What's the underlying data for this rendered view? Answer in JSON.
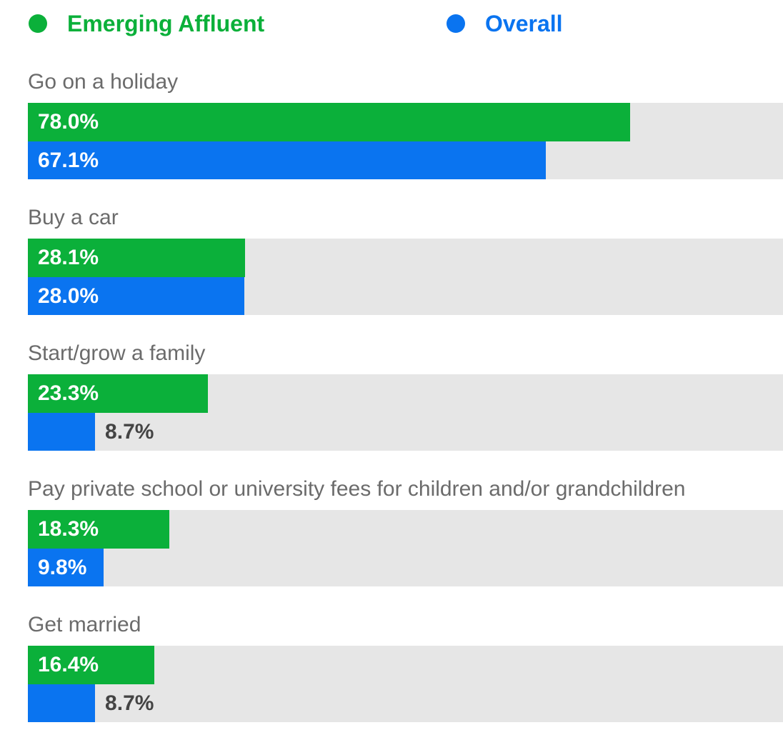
{
  "chart_data": {
    "type": "bar",
    "orientation": "horizontal",
    "categories": [
      "Go on a holiday",
      "Buy a car",
      "Start/grow a family",
      "Pay private school or university fees for children and/or grandchildren",
      "Get married"
    ],
    "xlim": [
      0,
      100
    ],
    "series": [
      {
        "name": "Emerging Affluent",
        "color": "#0bb03a",
        "values": [
          78.0,
          28.1,
          23.3,
          18.3,
          16.4
        ],
        "value_labels": [
          "78.0%",
          "28.1%",
          "23.3%",
          "18.3%",
          "16.4%"
        ]
      },
      {
        "name": "Overall",
        "color": "#0a74f0",
        "values": [
          67.1,
          28.0,
          8.7,
          9.8,
          8.7
        ],
        "value_labels": [
          "67.1%",
          "28.0%",
          "8.7%",
          "9.8%",
          "8.7%"
        ]
      }
    ]
  }
}
